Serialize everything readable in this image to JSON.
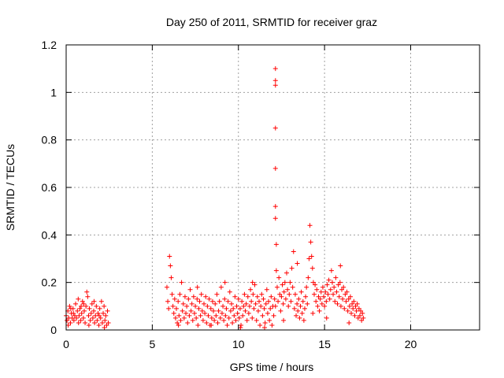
{
  "colors": {
    "series": "#ff0000",
    "grid": "#a0a0a0",
    "axis": "#000000"
  },
  "chart_data": {
    "type": "scatter",
    "title": "Day 250 of 2011, SRMTID for receiver graz",
    "xlabel": "GPS time / hours",
    "ylabel": "SRMTID / TECUs",
    "xlim": [
      0,
      24
    ],
    "ylim": [
      0,
      1.2
    ],
    "xticks": [
      0,
      5,
      10,
      15,
      20
    ],
    "xtick_labels": [
      "0",
      "5",
      "10",
      "15",
      "20"
    ],
    "yticks": [
      0,
      0.2,
      0.4,
      0.6,
      0.8,
      1.0,
      1.2
    ],
    "ytick_labels": [
      "0",
      "0.2",
      "0.4",
      "0.6",
      "0.8",
      "1",
      "1.2"
    ],
    "grid": true,
    "marker": "plus",
    "series": [
      {
        "name": "SRMTID",
        "points": [
          [
            0.0,
            0.06
          ],
          [
            0.05,
            0.04
          ],
          [
            0.1,
            0.08
          ],
          [
            0.15,
            0.05
          ],
          [
            0.2,
            0.1
          ],
          [
            0.25,
            0.03
          ],
          [
            0.3,
            0.07
          ],
          [
            0.35,
            0.05
          ],
          [
            0.4,
            0.09
          ],
          [
            0.45,
            0.04
          ],
          [
            0.5,
            0.06
          ],
          [
            0.55,
            0.11
          ],
          [
            0.6,
            0.05
          ],
          [
            0.65,
            0.08
          ],
          [
            0.7,
            0.13
          ],
          [
            0.75,
            0.06
          ],
          [
            0.8,
            0.09
          ],
          [
            0.85,
            0.04
          ],
          [
            0.9,
            0.07
          ],
          [
            0.95,
            0.12
          ],
          [
            1.0,
            0.05
          ],
          [
            1.05,
            0.08
          ],
          [
            1.1,
            0.03
          ],
          [
            1.15,
            0.1
          ],
          [
            1.2,
            0.16
          ],
          [
            1.25,
            0.14
          ],
          [
            1.3,
            0.06
          ],
          [
            1.35,
            0.09
          ],
          [
            1.4,
            0.04
          ],
          [
            1.45,
            0.07
          ],
          [
            1.5,
            0.11
          ],
          [
            1.55,
            0.05
          ],
          [
            1.6,
            0.08
          ],
          [
            1.65,
            0.03
          ],
          [
            1.7,
            0.06
          ],
          [
            1.75,
            0.1
          ],
          [
            1.8,
            0.04
          ],
          [
            1.85,
            0.07
          ],
          [
            1.9,
            0.02
          ],
          [
            1.95,
            0.09
          ],
          [
            2.0,
            0.05
          ],
          [
            2.05,
            0.12
          ],
          [
            2.1,
            0.03
          ],
          [
            2.15,
            0.07
          ],
          [
            2.2,
            0.1
          ],
          [
            2.25,
            0.04
          ],
          [
            2.3,
            0.06
          ],
          [
            2.35,
            0.02
          ],
          [
            2.4,
            0.08
          ],
          [
            2.45,
            0.03
          ],
          [
            0.12,
            0.02
          ],
          [
            0.42,
            0.07
          ],
          [
            0.72,
            0.03
          ],
          [
            1.02,
            0.11
          ],
          [
            1.32,
            0.02
          ],
          [
            1.62,
            0.12
          ],
          [
            1.92,
            0.06
          ],
          [
            2.22,
            0.01
          ],
          [
            0.27,
            0.09
          ],
          [
            0.87,
            0.1
          ],
          [
            5.85,
            0.18
          ],
          [
            5.9,
            0.12
          ],
          [
            5.95,
            0.09
          ],
          [
            6.0,
            0.31
          ],
          [
            6.05,
            0.27
          ],
          [
            6.1,
            0.22
          ],
          [
            6.15,
            0.15
          ],
          [
            6.2,
            0.1
          ],
          [
            6.25,
            0.07
          ],
          [
            6.3,
            0.13
          ],
          [
            6.35,
            0.05
          ],
          [
            6.4,
            0.09
          ],
          [
            6.45,
            0.03
          ],
          [
            6.5,
            0.12
          ],
          [
            6.55,
            0.06
          ],
          [
            6.6,
            0.15
          ],
          [
            6.65,
            0.04
          ],
          [
            6.7,
            0.2
          ],
          [
            6.75,
            0.08
          ],
          [
            6.8,
            0.11
          ],
          [
            6.85,
            0.05
          ],
          [
            6.9,
            0.14
          ],
          [
            6.95,
            0.07
          ],
          [
            7.0,
            0.1
          ],
          [
            7.05,
            0.03
          ],
          [
            7.1,
            0.13
          ],
          [
            7.15,
            0.06
          ],
          [
            7.2,
            0.17
          ],
          [
            7.25,
            0.08
          ],
          [
            7.3,
            0.11
          ],
          [
            7.35,
            0.04
          ],
          [
            7.4,
            0.14
          ],
          [
            7.45,
            0.07
          ],
          [
            7.5,
            0.1
          ],
          [
            7.55,
            0.05
          ],
          [
            7.6,
            0.13
          ],
          [
            7.65,
            0.02
          ],
          [
            7.7,
            0.09
          ],
          [
            7.75,
            0.12
          ],
          [
            7.8,
            0.06
          ],
          [
            7.85,
            0.15
          ],
          [
            7.9,
            0.08
          ],
          [
            7.95,
            0.04
          ],
          [
            8.0,
            0.11
          ],
          [
            8.05,
            0.07
          ],
          [
            8.1,
            0.14
          ],
          [
            8.15,
            0.03
          ],
          [
            8.2,
            0.1
          ],
          [
            8.25,
            0.06
          ],
          [
            8.3,
            0.13
          ],
          [
            8.35,
            0.02
          ],
          [
            8.4,
            0.09
          ],
          [
            8.45,
            0.05
          ],
          [
            8.5,
            0.12
          ],
          [
            8.55,
            0.08
          ],
          [
            8.6,
            0.04
          ],
          [
            8.65,
            0.11
          ],
          [
            8.7,
            0.06
          ],
          [
            8.75,
            0.15
          ],
          [
            8.8,
            0.03
          ],
          [
            8.85,
            0.08
          ],
          [
            8.9,
            0.12
          ],
          [
            8.95,
            0.05
          ],
          [
            9.0,
            0.18
          ],
          [
            9.05,
            0.07
          ],
          [
            9.1,
            0.1
          ],
          [
            9.15,
            0.04
          ],
          [
            9.2,
            0.13
          ],
          [
            9.25,
            0.06
          ],
          [
            9.3,
            0.09
          ],
          [
            9.35,
            0.02
          ],
          [
            9.4,
            0.12
          ],
          [
            9.45,
            0.05
          ],
          [
            9.5,
            0.16
          ],
          [
            9.55,
            0.08
          ],
          [
            9.6,
            0.11
          ],
          [
            9.65,
            0.03
          ],
          [
            9.7,
            0.09
          ],
          [
            9.75,
            0.06
          ],
          [
            9.8,
            0.14
          ],
          [
            9.85,
            0.04
          ],
          [
            9.9,
            0.1
          ],
          [
            9.95,
            0.07
          ],
          [
            10.0,
            0.13
          ],
          [
            10.05,
            0.05
          ],
          [
            10.1,
            0.09
          ],
          [
            10.15,
            0.02
          ],
          [
            10.2,
            0.12
          ],
          [
            10.25,
            0.06
          ],
          [
            10.3,
            0.1
          ],
          [
            10.35,
            0.15
          ],
          [
            10.4,
            0.08
          ],
          [
            10.45,
            0.11
          ],
          [
            10.5,
            0.04
          ],
          [
            10.55,
            0.14
          ],
          [
            10.6,
            0.07
          ],
          [
            10.65,
            0.1
          ],
          [
            10.7,
            0.17
          ],
          [
            10.75,
            0.12
          ],
          [
            10.8,
            0.05
          ],
          [
            10.85,
            0.15
          ],
          [
            10.9,
            0.09
          ],
          [
            10.95,
            0.19
          ],
          [
            11.0,
            0.11
          ],
          [
            11.05,
            0.04
          ],
          [
            11.1,
            0.14
          ],
          [
            11.15,
            0.08
          ],
          [
            11.2,
            0.12
          ],
          [
            11.25,
            0.02
          ],
          [
            11.3,
            0.1
          ],
          [
            11.35,
            0.15
          ],
          [
            11.4,
            0.06
          ],
          [
            11.45,
            0.13
          ],
          [
            11.5,
            0.09
          ],
          [
            11.55,
            0.03
          ],
          [
            11.6,
            0.11
          ],
          [
            11.65,
            0.17
          ],
          [
            11.7,
            0.07
          ],
          [
            11.75,
            0.12
          ],
          [
            11.8,
            0.04
          ],
          [
            11.85,
            0.09
          ],
          [
            11.9,
            0.14
          ],
          [
            11.95,
            0.02
          ],
          [
            12.0,
            0.1
          ],
          [
            12.05,
            0.06
          ],
          [
            12.1,
            0.13
          ],
          [
            12.15,
            0.1
          ],
          [
            12.15,
            1.1
          ],
          [
            12.15,
            1.05
          ],
          [
            12.15,
            1.03
          ],
          [
            12.15,
            0.85
          ],
          [
            12.15,
            0.68
          ],
          [
            12.15,
            0.52
          ],
          [
            12.15,
            0.47
          ],
          [
            12.2,
            0.36
          ],
          [
            12.2,
            0.25
          ],
          [
            12.25,
            0.18
          ],
          [
            12.3,
            0.12
          ],
          [
            12.35,
            0.22
          ],
          [
            12.4,
            0.15
          ],
          [
            12.45,
            0.08
          ],
          [
            12.5,
            0.14
          ],
          [
            12.55,
            0.19
          ],
          [
            12.6,
            0.11
          ],
          [
            12.65,
            0.16
          ],
          [
            12.7,
            0.2
          ],
          [
            12.75,
            0.13
          ],
          [
            12.8,
            0.24
          ],
          [
            12.85,
            0.17
          ],
          [
            12.9,
            0.1
          ],
          [
            12.95,
            0.15
          ],
          [
            13.0,
            0.2
          ],
          [
            13.05,
            0.12
          ],
          [
            13.1,
            0.26
          ],
          [
            13.15,
            0.18
          ],
          [
            13.2,
            0.33
          ],
          [
            13.25,
            0.09
          ],
          [
            13.3,
            0.15
          ],
          [
            13.35,
            0.06
          ],
          [
            13.4,
            0.11
          ],
          [
            13.45,
            0.08
          ],
          [
            13.5,
            0.13
          ],
          [
            13.55,
            0.05
          ],
          [
            13.6,
            0.1
          ],
          [
            13.65,
            0.16
          ],
          [
            13.7,
            0.07
          ],
          [
            13.75,
            0.12
          ],
          [
            13.8,
            0.04
          ],
          [
            13.85,
            0.09
          ],
          [
            13.9,
            0.14
          ],
          [
            13.95,
            0.18
          ],
          [
            14.0,
            0.11
          ],
          [
            14.05,
            0.22
          ],
          [
            14.1,
            0.3
          ],
          [
            14.15,
            0.44
          ],
          [
            14.2,
            0.37
          ],
          [
            14.25,
            0.31
          ],
          [
            14.3,
            0.26
          ],
          [
            14.35,
            0.2
          ],
          [
            14.4,
            0.15
          ],
          [
            14.45,
            0.19
          ],
          [
            14.5,
            0.12
          ],
          [
            14.55,
            0.17
          ],
          [
            14.6,
            0.1
          ],
          [
            14.65,
            0.14
          ],
          [
            14.7,
            0.08
          ],
          [
            14.75,
            0.13
          ],
          [
            14.8,
            0.16
          ],
          [
            14.85,
            0.11
          ],
          [
            14.9,
            0.18
          ],
          [
            14.95,
            0.14
          ],
          [
            15.0,
            0.1
          ],
          [
            15.05,
            0.16
          ],
          [
            15.1,
            0.12
          ],
          [
            15.15,
            0.19
          ],
          [
            15.2,
            0.15
          ],
          [
            15.25,
            0.21
          ],
          [
            15.3,
            0.13
          ],
          [
            15.35,
            0.17
          ],
          [
            15.4,
            0.25
          ],
          [
            15.45,
            0.2
          ],
          [
            15.5,
            0.15
          ],
          [
            15.55,
            0.18
          ],
          [
            15.6,
            0.12
          ],
          [
            15.65,
            0.22
          ],
          [
            15.7,
            0.16
          ],
          [
            15.75,
            0.11
          ],
          [
            15.8,
            0.19
          ],
          [
            15.85,
            0.14
          ],
          [
            15.9,
            0.2
          ],
          [
            15.95,
            0.1
          ],
          [
            16.0,
            0.17
          ],
          [
            16.05,
            0.13
          ],
          [
            16.1,
            0.18
          ],
          [
            16.15,
            0.09
          ],
          [
            16.2,
            0.15
          ],
          [
            16.25,
            0.12
          ],
          [
            16.3,
            0.16
          ],
          [
            16.35,
            0.08
          ],
          [
            16.4,
            0.13
          ],
          [
            16.45,
            0.1
          ],
          [
            16.5,
            0.14
          ],
          [
            16.55,
            0.07
          ],
          [
            16.6,
            0.11
          ],
          [
            16.65,
            0.09
          ],
          [
            16.7,
            0.12
          ],
          [
            16.75,
            0.06
          ],
          [
            16.8,
            0.1
          ],
          [
            16.85,
            0.08
          ],
          [
            16.9,
            0.11
          ],
          [
            16.95,
            0.05
          ],
          [
            17.0,
            0.09
          ],
          [
            17.05,
            0.06
          ],
          [
            17.1,
            0.08
          ],
          [
            17.15,
            0.04
          ],
          [
            17.2,
            0.07
          ],
          [
            17.25,
            0.05
          ],
          [
            6.52,
            0.02
          ],
          [
            7.62,
            0.18
          ],
          [
            8.42,
            0.02
          ],
          [
            9.22,
            0.2
          ],
          [
            10.12,
            0.01
          ],
          [
            10.82,
            0.2
          ],
          [
            11.52,
            0.01
          ],
          [
            12.62,
            0.04
          ],
          [
            13.42,
            0.28
          ],
          [
            14.32,
            0.07
          ],
          [
            15.12,
            0.05
          ],
          [
            15.92,
            0.27
          ],
          [
            16.42,
            0.03
          ]
        ]
      }
    ]
  }
}
